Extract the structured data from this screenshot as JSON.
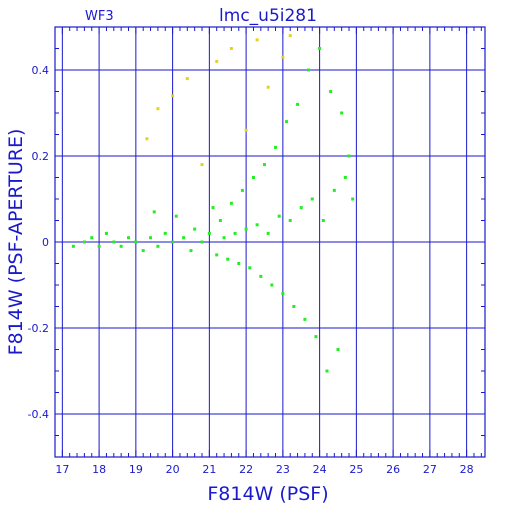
{
  "chart_data": {
    "type": "scatter",
    "title": "lmc_u5i281",
    "corner_label": "WF3",
    "xlabel": "F814W (PSF)",
    "ylabel": "F814W (PSF-APERTURE)",
    "xlim": [
      16.8,
      28.5
    ],
    "ylim": [
      -0.5,
      0.5
    ],
    "xticks": [
      17,
      18,
      19,
      20,
      21,
      22,
      23,
      24,
      25,
      26,
      27,
      28
    ],
    "yticks": [
      -0.4,
      -0.2,
      0,
      0.2,
      0.4
    ],
    "ytick_labels": [
      "-0.4",
      "-0.2",
      "0",
      "0.2",
      "0.4"
    ],
    "grid": true,
    "colors": {
      "axes": "#1a1acc",
      "series_main": "#22ee22",
      "series_secondary": "#e6d21e"
    },
    "series": [
      {
        "color": "#22ee22",
        "x": [
          17.3,
          17.6,
          17.8,
          18.0,
          18.2,
          18.4,
          18.6,
          18.8,
          19.0,
          19.2,
          19.4,
          19.5,
          19.6,
          19.8,
          20.0,
          20.1,
          20.3,
          20.5,
          20.6,
          20.8,
          21.0,
          21.1,
          21.2,
          21.3,
          21.4,
          21.5,
          21.6,
          21.7,
          21.8,
          21.9,
          22.0,
          22.1,
          22.2,
          22.3,
          22.4,
          22.5,
          22.6,
          22.7,
          22.8,
          22.9,
          23.0,
          23.1,
          23.2,
          23.3,
          23.4,
          23.5,
          23.6,
          23.7,
          23.8,
          23.9,
          24.0,
          24.1,
          24.2,
          24.3,
          24.4,
          24.5,
          24.6,
          24.7,
          24.8,
          24.9
        ],
        "y": [
          -0.01,
          0.0,
          0.01,
          -0.01,
          0.02,
          0.0,
          -0.01,
          0.01,
          0.0,
          -0.02,
          0.01,
          0.07,
          -0.01,
          0.02,
          0.0,
          0.06,
          0.01,
          -0.02,
          0.03,
          0.0,
          0.02,
          0.08,
          -0.03,
          0.05,
          0.01,
          -0.04,
          0.09,
          0.02,
          -0.05,
          0.12,
          0.03,
          -0.06,
          0.15,
          0.04,
          -0.08,
          0.18,
          0.02,
          -0.1,
          0.22,
          0.06,
          -0.12,
          0.28,
          0.05,
          -0.15,
          0.32,
          0.08,
          -0.18,
          0.4,
          0.1,
          -0.22,
          0.45,
          0.05,
          -0.3,
          0.35,
          0.12,
          -0.25,
          0.3,
          0.15,
          0.2,
          0.1
        ]
      },
      {
        "color": "#e6d21e",
        "x": [
          19.3,
          19.6,
          20.0,
          20.4,
          20.8,
          21.2,
          21.6,
          22.0,
          22.3,
          22.6,
          23.0,
          23.2
        ],
        "y": [
          0.24,
          0.31,
          0.34,
          0.38,
          0.18,
          0.42,
          0.45,
          0.26,
          0.47,
          0.36,
          0.43,
          0.48
        ]
      }
    ]
  }
}
